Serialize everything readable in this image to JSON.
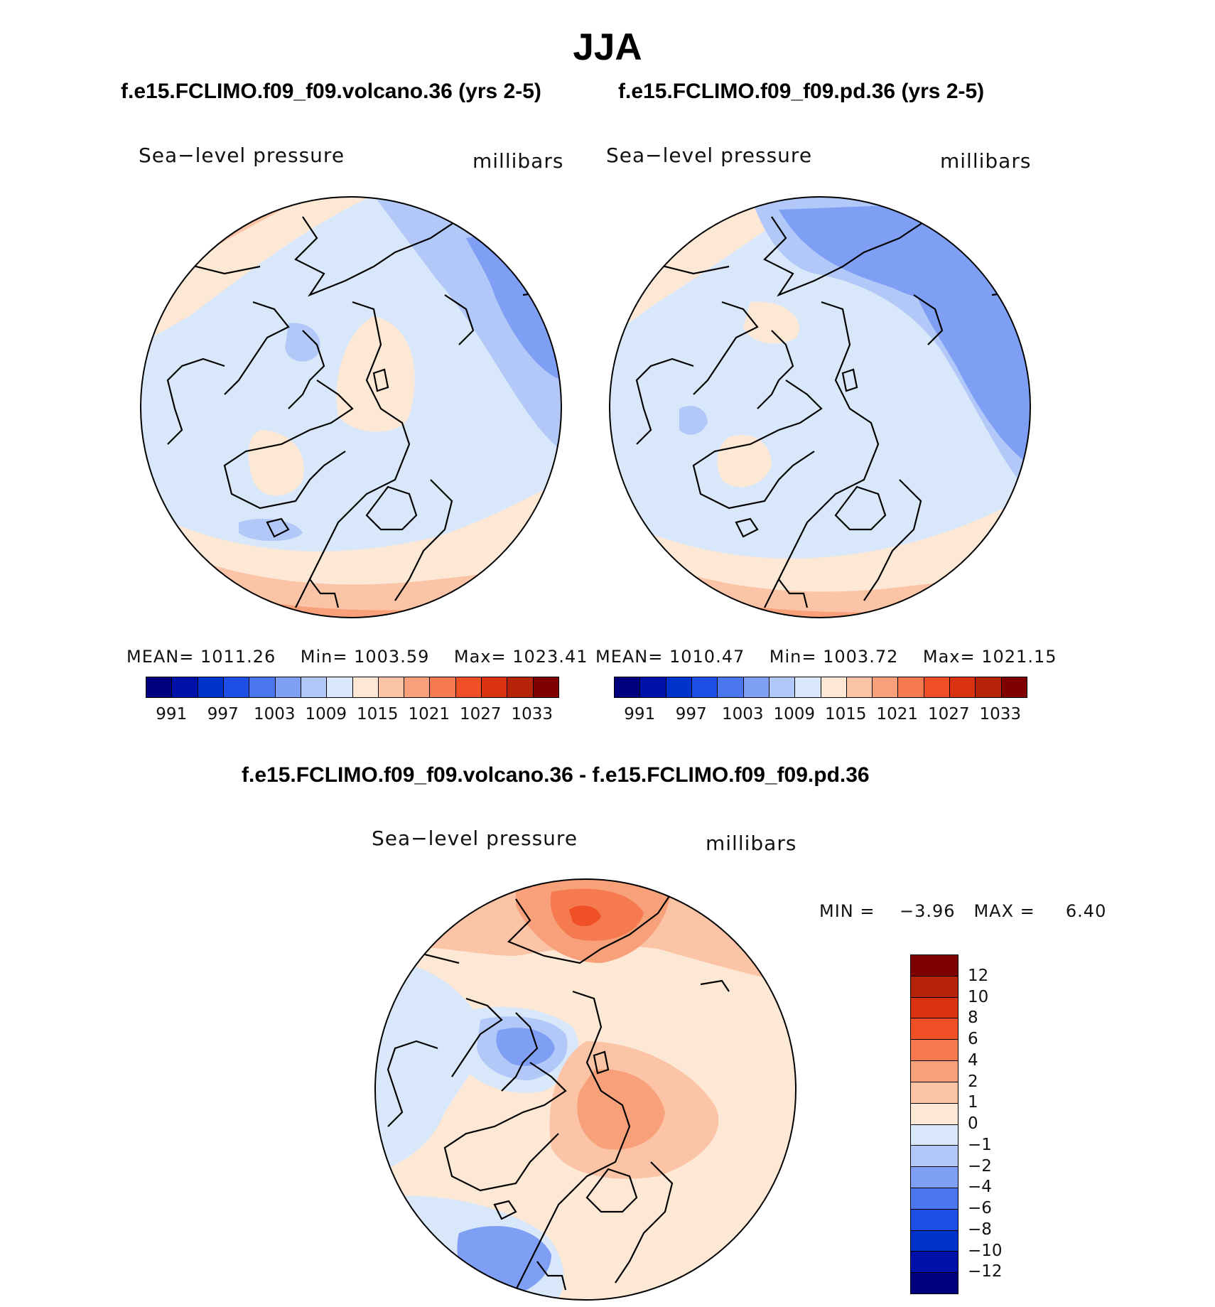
{
  "figure": {
    "title": "JJA",
    "panel_left_title": "f.e15.FCLIMO.f09_f09.volcano.36 (yrs 2-5)",
    "panel_right_title": "f.e15.FCLIMO.f09_f09.pd.36 (yrs 2-5)",
    "diff_title": "f.e15.FCLIMO.f09_f09.volcano.36 - f.e15.FCLIMO.f09_f09.pd.36"
  },
  "panels": {
    "left": {
      "variable": "Sea−level pressure",
      "units": "millibars",
      "mean_label": "MEAN=",
      "mean": "1011.26",
      "min_label": "Min=",
      "min": "1003.59",
      "max_label": "Max=",
      "max": "1023.41"
    },
    "right": {
      "variable": "Sea−level pressure",
      "units": "millibars",
      "mean_label": "MEAN=",
      "mean": "1010.47",
      "min_label": "Min=",
      "min": "1003.72",
      "max_label": "Max=",
      "max": "1021.15"
    },
    "diff": {
      "variable": "Sea−level pressure",
      "units": "millibars",
      "min_label": "MIN =",
      "min": "−3.96",
      "max_label": "MAX =",
      "max": "6.40"
    }
  },
  "colorbars": {
    "absolute": {
      "colors": [
        "#00007f",
        "#0011aa",
        "#0033cc",
        "#1d4fe6",
        "#4a77ef",
        "#7f9ff5",
        "#b2c8f8",
        "#d8e8fa",
        "#fde7d5",
        "#fbc4a6",
        "#f8a07a",
        "#f57a4f",
        "#ef5025",
        "#d93312",
        "#b52309",
        "#7f0000"
      ],
      "tick_labels": [
        "991",
        "997",
        "1003",
        "1009",
        "1015",
        "1021",
        "1027",
        "1033"
      ]
    },
    "difference": {
      "colors": [
        "#7f0000",
        "#b52309",
        "#d93312",
        "#ef5025",
        "#f57a4f",
        "#f8a07a",
        "#fbc4a6",
        "#fde7d5",
        "#d8e8fa",
        "#b2c8f8",
        "#7f9ff5",
        "#4a77ef",
        "#1d4fe6",
        "#0033cc",
        "#0011aa",
        "#00007f"
      ],
      "tick_labels": [
        "12",
        "10",
        "8",
        "6",
        "4",
        "2",
        "1",
        "0",
        "−1",
        "−2",
        "−4",
        "−6",
        "−8",
        "−10",
        "−12"
      ]
    }
  },
  "palette": {
    "v_low": "#b2c8f8",
    "low": "#d8e8fa",
    "mid": "#7f9ff5",
    "hi1": "#fde7d5",
    "hi2": "#fbc4a6",
    "hi3": "#f8a07a",
    "hi4": "#f57a4f",
    "hi5": "#ef5025",
    "coast": "#000000"
  }
}
